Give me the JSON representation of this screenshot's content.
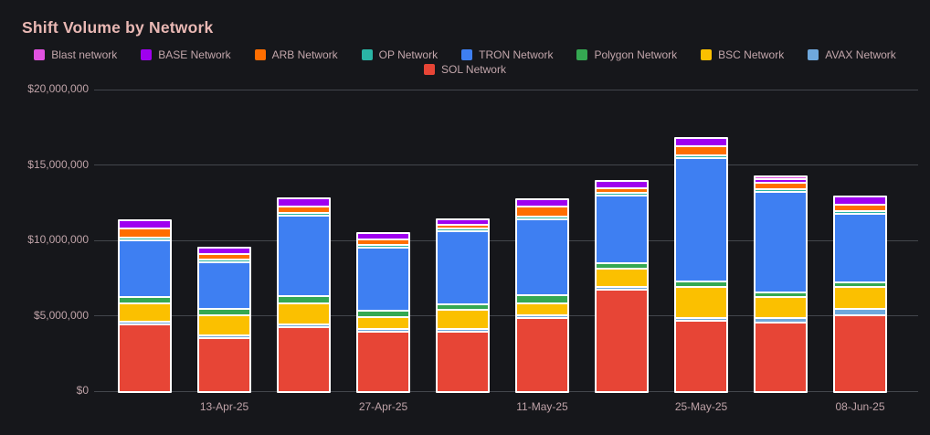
{
  "chart": {
    "title": "Shift Volume by Network"
  },
  "chart_data": {
    "type": "bar",
    "stacked": true,
    "title": "Shift Volume by Network",
    "xlabel": "",
    "ylabel": "",
    "ylim": [
      0,
      20000000
    ],
    "y_tick_labels": [
      "$20,000,000",
      "$15,000,000",
      "$10,000,000",
      "$5,000,000",
      "$0"
    ],
    "y_tick_values": [
      20000000,
      15000000,
      10000000,
      5000000,
      0
    ],
    "grid": true,
    "legend_position": "top-center",
    "categories": [
      "",
      "13-Apr-25",
      "",
      "27-Apr-25",
      "",
      "11-May-25",
      "",
      "25-May-25",
      "",
      "08-Jun-25"
    ],
    "x_tick_labels": [
      "13-Apr-25",
      "27-Apr-25",
      "11-May-25",
      "25-May-25",
      "08-Jun-25"
    ],
    "series": [
      {
        "name": "SOL Network",
        "color": "#e74536",
        "values": [
          4500000,
          3600000,
          4300000,
          4000000,
          4000000,
          4900000,
          6800000,
          4700000,
          4600000,
          5100000
        ]
      },
      {
        "name": "AVAX Network",
        "color": "#6fa8dc",
        "values": [
          50000,
          100000,
          100000,
          200000,
          80000,
          200000,
          200000,
          150000,
          300000,
          400000
        ]
      },
      {
        "name": "BSC Network",
        "color": "#fbc000",
        "values": [
          1200000,
          1300000,
          1400000,
          750000,
          1300000,
          800000,
          1200000,
          2100000,
          1400000,
          1500000
        ]
      },
      {
        "name": "Polygon Network",
        "color": "#35a852",
        "values": [
          400000,
          420000,
          500000,
          420000,
          360000,
          550000,
          360000,
          360000,
          300000,
          300000
        ]
      },
      {
        "name": "TRON Network",
        "color": "#3e7ff2",
        "values": [
          3750000,
          3100000,
          5300000,
          4200000,
          4800000,
          5000000,
          4500000,
          8200000,
          6700000,
          4500000
        ]
      },
      {
        "name": "OP Network",
        "color": "#2ab5a5",
        "values": [
          50000,
          50000,
          50000,
          50000,
          50000,
          50000,
          50000,
          50000,
          50000,
          50000
        ]
      },
      {
        "name": "ARB Network",
        "color": "#ff6e00",
        "values": [
          640000,
          400000,
          450000,
          400000,
          280000,
          700000,
          280000,
          600000,
          420000,
          420000
        ]
      },
      {
        "name": "BASE Network",
        "color": "#9f00f0",
        "values": [
          550000,
          380000,
          550000,
          420000,
          340000,
          450000,
          500000,
          500000,
          250000,
          550000
        ]
      },
      {
        "name": "Blast network",
        "color": "#e052e0",
        "values": [
          0,
          0,
          0,
          0,
          0,
          0,
          0,
          0,
          120000,
          0
        ]
      }
    ],
    "legend_rows": [
      [
        "Blast network",
        "BASE Network",
        "ARB Network",
        "OP Network",
        "TRON Network",
        "Polygon Network",
        "BSC Network",
        "AVAX Network"
      ],
      [
        "SOL Network"
      ]
    ],
    "colors": {
      "background": "#16171b",
      "gridline": "#43464c",
      "title_text": "#e9b8b4",
      "axis_text": "#bfa3a8",
      "legend_text": "#c2a6ab",
      "bar_stroke": "#ffffff"
    }
  }
}
